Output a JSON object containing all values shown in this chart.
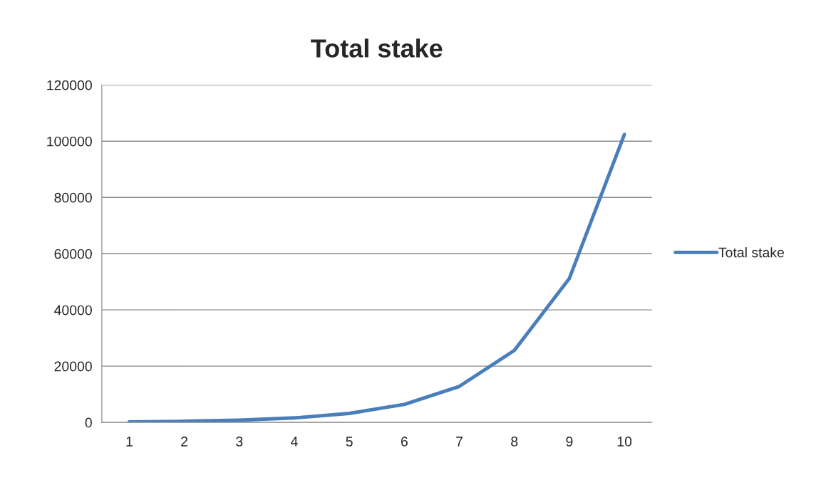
{
  "chart_data": {
    "type": "line",
    "title": "Total stake",
    "categories": [
      "1",
      "2",
      "3",
      "4",
      "5",
      "6",
      "7",
      "8",
      "9",
      "10"
    ],
    "series": [
      {
        "name": "Total stake",
        "color": "#4a7ebb",
        "values": [
          200,
          400,
          800,
          1600,
          3200,
          6400,
          12800,
          25600,
          51200,
          102400
        ]
      }
    ],
    "ylim": [
      0,
      120000
    ],
    "yticks": [
      0,
      20000,
      40000,
      60000,
      80000,
      100000,
      120000
    ],
    "grid": "y",
    "legend": "right",
    "marker": "none",
    "line_style": "solid"
  }
}
